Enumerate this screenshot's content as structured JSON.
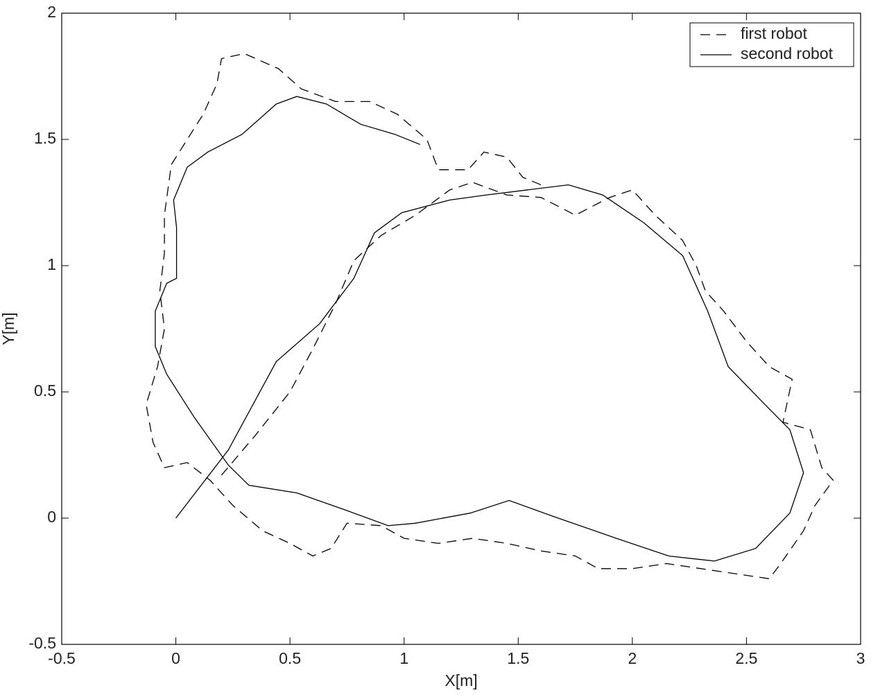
{
  "chart_data": {
    "type": "line",
    "xlabel": "X[m]",
    "ylabel": "Y[m]",
    "xlim": [
      -0.5,
      3
    ],
    "xticks": [
      -0.5,
      0,
      0.5,
      1,
      1.5,
      2,
      2.5,
      3
    ],
    "ylim": [
      -0.5,
      2
    ],
    "yticks": [
      -0.5,
      0,
      0.5,
      1,
      1.5,
      2
    ],
    "grid": false,
    "legend": "upper right",
    "series": [
      {
        "name": "first robot",
        "color": "#000000",
        "dash": "dashed",
        "x": [
          0.2,
          0.35,
          0.5,
          0.6,
          0.7,
          0.78,
          0.9,
          1.05,
          1.2,
          1.3,
          1.45,
          1.6,
          1.75,
          1.9,
          2.0,
          2.1,
          2.22,
          2.28,
          2.32,
          2.4,
          2.5,
          2.6,
          2.7,
          2.66,
          2.78,
          2.83,
          2.88,
          2.8,
          2.75,
          2.65,
          2.6,
          2.45,
          2.3,
          2.15,
          2.0,
          1.85,
          1.75,
          1.6,
          1.45,
          1.3,
          1.15,
          1.0,
          0.9,
          0.75,
          0.68,
          0.6,
          0.5,
          0.38,
          0.25,
          0.15,
          0.05,
          -0.05,
          -0.1,
          -0.13,
          -0.08,
          -0.05,
          -0.07,
          -0.05,
          -0.05,
          -0.02,
          0.05,
          0.12,
          0.18,
          0.2,
          0.3,
          0.45,
          0.55,
          0.7,
          0.85,
          0.97,
          1.1,
          1.15,
          1.28,
          1.35,
          1.45,
          1.52,
          1.6
        ],
        "values": [
          0.17,
          0.33,
          0.5,
          0.67,
          0.85,
          1.02,
          1.12,
          1.2,
          1.3,
          1.33,
          1.28,
          1.27,
          1.2,
          1.27,
          1.3,
          1.2,
          1.1,
          1.0,
          0.9,
          0.82,
          0.7,
          0.6,
          0.55,
          0.38,
          0.35,
          0.2,
          0.15,
          0.05,
          -0.05,
          -0.18,
          -0.24,
          -0.22,
          -0.2,
          -0.18,
          -0.2,
          -0.2,
          -0.15,
          -0.13,
          -0.1,
          -0.08,
          -0.1,
          -0.08,
          -0.03,
          -0.02,
          -0.12,
          -0.15,
          -0.1,
          -0.05,
          0.05,
          0.15,
          0.22,
          0.2,
          0.3,
          0.45,
          0.6,
          0.75,
          0.9,
          1.05,
          1.2,
          1.4,
          1.5,
          1.6,
          1.72,
          1.82,
          1.84,
          1.78,
          1.7,
          1.65,
          1.65,
          1.6,
          1.5,
          1.38,
          1.38,
          1.45,
          1.43,
          1.35,
          1.32
        ]
      },
      {
        "name": "second robot",
        "color": "#000000",
        "dash": "solid",
        "x": [
          0,
          0.23,
          0.44,
          0.63,
          0.78,
          0.87,
          0.99,
          1.2,
          1.36,
          1.54,
          1.72,
          1.87,
          2.05,
          2.22,
          2.33,
          2.42,
          2.57,
          2.69,
          2.75,
          2.69,
          2.54,
          2.36,
          2.16,
          1.93,
          1.66,
          1.46,
          1.29,
          1.05,
          0.93,
          0.75,
          0.53,
          0.32,
          0.23,
          0.08,
          -0.04,
          -0.09,
          -0.09,
          -0.04,
          0.003,
          0.003,
          -0.01,
          0.05,
          0.14,
          0.29,
          0.44,
          0.53,
          0.66,
          0.81,
          0.96,
          1.07
        ],
        "values": [
          0,
          0.27,
          0.62,
          0.77,
          0.95,
          1.13,
          1.21,
          1.26,
          1.28,
          1.3,
          1.32,
          1.28,
          1.17,
          1.04,
          0.82,
          0.6,
          0.46,
          0.35,
          0.18,
          0.02,
          -0.12,
          -0.17,
          -0.15,
          -0.08,
          0.005,
          0.07,
          0.02,
          -0.02,
          -0.03,
          0.03,
          0.1,
          0.13,
          0.21,
          0.4,
          0.57,
          0.68,
          0.82,
          0.93,
          0.95,
          1.15,
          1.26,
          1.39,
          1.45,
          1.52,
          1.64,
          1.67,
          1.64,
          1.56,
          1.52,
          1.48
        ]
      }
    ]
  }
}
